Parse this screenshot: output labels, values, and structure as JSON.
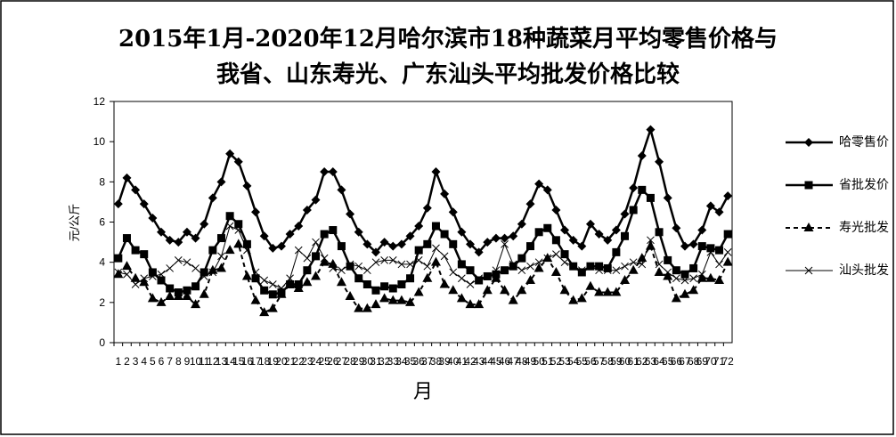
{
  "chart_data": {
    "type": "line",
    "title": "2015年1月-2020年12月哈尔滨市18种蔬菜月平均零售价格与",
    "subtitle": "我省、山东寿光、广东汕头平均批发价格比较",
    "y_label": "元/公斤",
    "x_label": "月",
    "categories": [
      "1",
      "2",
      "3",
      "4",
      "5",
      "6",
      "7",
      "8",
      "9",
      "10",
      "11",
      "12",
      "13",
      "14",
      "15",
      "16",
      "17",
      "18",
      "19",
      "20",
      "21",
      "22",
      "23",
      "24",
      "25",
      "26",
      "27",
      "28",
      "29",
      "30",
      "31",
      "32",
      "33",
      "34",
      "35",
      "36",
      "37",
      "38",
      "39",
      "40",
      "41",
      "42",
      "43",
      "44",
      "45",
      "46",
      "47",
      "48",
      "49",
      "50",
      "51",
      "52",
      "53",
      "54",
      "55",
      "56",
      "57",
      "58",
      "59",
      "60",
      "61",
      "62",
      "63",
      "64",
      "65",
      "66",
      "67",
      "68",
      "69",
      "70",
      "71",
      "72"
    ],
    "ylim": [
      0,
      12
    ],
    "yticks": [
      0,
      2,
      4,
      6,
      8,
      10,
      12
    ],
    "series": [
      {
        "name": "哈零售价",
        "color": "#000000",
        "marker": "diamond",
        "dash": false,
        "values": [
          6.9,
          8.2,
          7.6,
          6.9,
          6.2,
          5.5,
          5.1,
          5.0,
          5.5,
          5.2,
          5.9,
          7.2,
          8.0,
          9.4,
          9.0,
          7.8,
          6.5,
          5.3,
          4.7,
          4.8,
          5.4,
          5.8,
          6.6,
          7.1,
          8.5,
          8.5,
          7.6,
          6.4,
          5.5,
          4.9,
          4.5,
          5.0,
          4.8,
          4.9,
          5.3,
          5.8,
          6.7,
          8.5,
          7.4,
          6.5,
          5.5,
          4.9,
          4.5,
          5.0,
          5.2,
          5.2,
          5.3,
          5.9,
          6.9,
          7.9,
          7.6,
          6.6,
          5.6,
          5.1,
          4.8,
          5.9,
          5.4,
          5.1,
          5.6,
          6.4,
          7.7,
          9.3,
          10.6,
          9.0,
          7.2,
          5.7,
          4.8,
          4.9,
          5.6,
          6.8,
          6.5,
          7.3
        ]
      },
      {
        "name": "省批发价",
        "color": "#000000",
        "marker": "square",
        "dash": false,
        "values": [
          4.2,
          5.2,
          4.6,
          4.4,
          3.5,
          3.1,
          2.7,
          2.5,
          2.6,
          2.8,
          3.5,
          4.6,
          5.2,
          6.3,
          5.9,
          4.9,
          3.2,
          2.6,
          2.4,
          2.5,
          2.9,
          2.9,
          3.6,
          4.3,
          5.4,
          5.6,
          4.8,
          3.8,
          3.2,
          2.9,
          2.6,
          2.8,
          2.7,
          2.9,
          3.2,
          4.6,
          4.9,
          5.8,
          5.4,
          4.9,
          3.9,
          3.6,
          3.1,
          3.3,
          3.4,
          3.6,
          3.8,
          4.2,
          4.8,
          5.5,
          5.7,
          5.1,
          4.4,
          3.8,
          3.5,
          3.8,
          3.8,
          3.7,
          4.5,
          5.3,
          6.6,
          7.6,
          7.2,
          5.5,
          4.1,
          3.6,
          3.4,
          3.7,
          4.8,
          4.7,
          4.6,
          5.4
        ]
      },
      {
        "name": "寿光批发",
        "color": "#000000",
        "marker": "triangle",
        "dash": true,
        "values": [
          3.4,
          3.8,
          3.2,
          3.0,
          2.2,
          2.0,
          2.3,
          2.3,
          2.3,
          1.9,
          2.4,
          3.6,
          3.7,
          4.6,
          4.9,
          3.3,
          2.1,
          1.5,
          1.7,
          2.4,
          2.9,
          2.7,
          3.0,
          3.3,
          4.0,
          3.9,
          3.0,
          2.3,
          1.7,
          1.7,
          1.9,
          2.2,
          2.1,
          2.1,
          2.0,
          2.5,
          3.2,
          4.0,
          2.9,
          2.6,
          2.2,
          1.9,
          1.9,
          2.6,
          3.2,
          2.6,
          2.1,
          2.6,
          3.1,
          3.7,
          4.2,
          3.5,
          2.6,
          2.1,
          2.2,
          2.8,
          2.5,
          2.5,
          2.5,
          3.1,
          3.6,
          4.2,
          4.8,
          3.5,
          3.3,
          2.2,
          2.4,
          2.6,
          3.2,
          3.2,
          3.1,
          4.0
        ]
      },
      {
        "name": "汕头批发",
        "color": "#000000",
        "marker": "cross",
        "dash": false,
        "values": [
          3.5,
          3.4,
          2.9,
          3.2,
          3.3,
          3.4,
          3.7,
          4.1,
          4.0,
          3.7,
          3.3,
          3.5,
          4.3,
          5.8,
          5.6,
          4.6,
          3.5,
          3.1,
          2.9,
          2.7,
          3.2,
          4.6,
          4.2,
          5.0,
          4.2,
          3.7,
          3.6,
          3.9,
          3.8,
          3.6,
          4.0,
          4.1,
          4.1,
          3.9,
          3.9,
          4.1,
          3.8,
          4.7,
          4.3,
          3.5,
          3.2,
          2.9,
          3.2,
          3.3,
          3.6,
          4.9,
          3.9,
          3.6,
          3.8,
          4.0,
          4.2,
          4.4,
          4.0,
          3.8,
          3.6,
          3.8,
          3.6,
          3.6,
          3.6,
          3.8,
          4.0,
          3.9,
          5.1,
          3.9,
          3.5,
          3.2,
          3.1,
          3.2,
          3.4,
          4.5,
          3.9,
          4.5
        ]
      }
    ]
  }
}
